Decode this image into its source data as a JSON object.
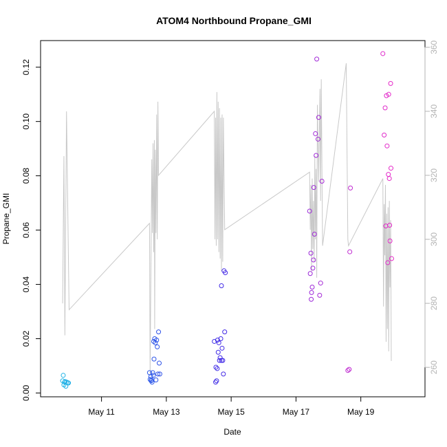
{
  "chart_data": {
    "type": "scatter",
    "title": "ATOM4 Northbound Propane_GMI",
    "xlabel": "Date",
    "ylabel": "Propane_GMI",
    "x_ticks": [
      {
        "label": "May 11",
        "value": 11
      },
      {
        "label": "May 13",
        "value": 13
      },
      {
        "label": "May 15",
        "value": 15
      },
      {
        "label": "May 17",
        "value": 17
      },
      {
        "label": "May 19",
        "value": 19
      }
    ],
    "xlim": [
      9.12,
      20.98
    ],
    "ylim": [
      -0.0014,
      0.1298
    ],
    "y_ticks": [
      "0.00",
      "0.02",
      "0.04",
      "0.06",
      "0.08",
      "0.10",
      "0.12"
    ],
    "y_right_ticks": [
      "260",
      "280",
      "300",
      "320",
      "340",
      "360"
    ],
    "y_right_lim": [
      250.8,
      362.1
    ],
    "grid": false,
    "colors": {
      "line": "#c8c8c8",
      "right_axis": "#b3b3b3",
      "point_gradient": [
        "#1eb4e6",
        "#2a5be8",
        "#4326e6",
        "#9a28d8",
        "#e628c8"
      ]
    },
    "series": [
      {
        "kind": "points",
        "points": [
          [
            9.8,
            0.0045
          ],
          [
            9.82,
            0.0065
          ],
          [
            9.84,
            0.003
          ],
          [
            9.86,
            0.004
          ],
          [
            9.88,
            0.0042
          ],
          [
            9.9,
            0.0025
          ],
          [
            9.92,
            0.004
          ],
          [
            9.96,
            0.0038
          ],
          [
            9.98,
            0.0037
          ],
          [
            12.48,
            0.0075
          ],
          [
            12.5,
            0.005
          ],
          [
            12.52,
            0.006
          ],
          [
            12.53,
            0.0045
          ],
          [
            12.55,
            0.0048
          ],
          [
            12.56,
            0.004
          ],
          [
            12.58,
            0.0075
          ],
          [
            12.6,
            0.0065
          ],
          [
            12.61,
            0.019
          ],
          [
            12.62,
            0.0125
          ],
          [
            12.64,
            0.02
          ],
          [
            12.66,
            0.0185
          ],
          [
            12.68,
            0.0048
          ],
          [
            12.7,
            0.0195
          ],
          [
            12.72,
            0.017
          ],
          [
            12.74,
            0.007
          ],
          [
            12.76,
            0.0225
          ],
          [
            12.78,
            0.011
          ],
          [
            12.8,
            0.007
          ],
          [
            14.48,
            0.019
          ],
          [
            14.52,
            0.004
          ],
          [
            14.53,
            0.0095
          ],
          [
            14.55,
            0.0045
          ],
          [
            14.57,
            0.009
          ],
          [
            14.58,
            0.0195
          ],
          [
            14.6,
            0.015
          ],
          [
            14.62,
            0.0185
          ],
          [
            14.64,
            0.012
          ],
          [
            14.66,
            0.013
          ],
          [
            14.68,
            0.02
          ],
          [
            14.7,
            0.012
          ],
          [
            14.7,
            0.0395
          ],
          [
            14.72,
            0.0165
          ],
          [
            14.74,
            0.012
          ],
          [
            14.76,
            0.007
          ],
          [
            14.78,
            0.045
          ],
          [
            14.8,
            0.0225
          ],
          [
            14.82,
            0.0443
          ],
          [
            17.42,
            0.067
          ],
          [
            17.44,
            0.044
          ],
          [
            17.46,
            0.0515
          ],
          [
            17.47,
            0.0345
          ],
          [
            17.48,
            0.037
          ],
          [
            17.5,
            0.039
          ],
          [
            17.52,
            0.046
          ],
          [
            17.54,
            0.049
          ],
          [
            17.55,
            0.0757
          ],
          [
            17.57,
            0.0585
          ],
          [
            17.6,
            0.0955
          ],
          [
            17.62,
            0.0875
          ],
          [
            17.64,
            0.123
          ],
          [
            17.68,
            0.0935
          ],
          [
            17.7,
            0.1015
          ],
          [
            17.73,
            0.036
          ],
          [
            17.76,
            0.0405
          ],
          [
            17.8,
            0.078
          ],
          [
            18.6,
            0.0083
          ],
          [
            18.64,
            0.0087
          ],
          [
            18.66,
            0.052
          ],
          [
            18.68,
            0.0755
          ],
          [
            19.68,
            0.125
          ],
          [
            19.72,
            0.095
          ],
          [
            19.75,
            0.105
          ],
          [
            19.77,
            0.0615
          ],
          [
            19.79,
            0.1095
          ],
          [
            19.81,
            0.091
          ],
          [
            19.83,
            0.048
          ],
          [
            19.85,
            0.0805
          ],
          [
            19.86,
            0.11
          ],
          [
            19.88,
            0.079
          ],
          [
            19.89,
            0.0618
          ],
          [
            19.9,
            0.056
          ],
          [
            19.92,
            0.114
          ],
          [
            19.93,
            0.0828
          ],
          [
            19.95,
            0.0495
          ]
        ]
      },
      {
        "kind": "line",
        "axis": "right",
        "points": [
          [
            9.8,
            280
          ],
          [
            9.84,
            326
          ],
          [
            9.87,
            270
          ],
          [
            9.92,
            340
          ],
          [
            10.0,
            278
          ],
          [
            12.48,
            305
          ],
          [
            12.5,
            258
          ],
          [
            12.52,
            285
          ],
          [
            12.55,
            325
          ],
          [
            12.57,
            302
          ],
          [
            12.59,
            330
          ],
          [
            12.61,
            296
          ],
          [
            12.63,
            331
          ],
          [
            12.64,
            272
          ],
          [
            12.66,
            328
          ],
          [
            12.68,
            302
          ],
          [
            12.7,
            339
          ],
          [
            12.72,
            300
          ],
          [
            12.74,
            343
          ],
          [
            12.76,
            320
          ],
          [
            14.48,
            340
          ],
          [
            14.5,
            300
          ],
          [
            14.52,
            338
          ],
          [
            14.54,
            298
          ],
          [
            14.56,
            346
          ],
          [
            14.58,
            300
          ],
          [
            14.6,
            343
          ],
          [
            14.62,
            296
          ],
          [
            14.64,
            341
          ],
          [
            14.66,
            294
          ],
          [
            14.68,
            338
          ],
          [
            14.7,
            290
          ],
          [
            14.72,
            339
          ],
          [
            14.74,
            293
          ],
          [
            14.76,
            338
          ],
          [
            14.8,
            303
          ],
          [
            17.42,
            321
          ],
          [
            17.44,
            303
          ],
          [
            17.46,
            317
          ],
          [
            17.48,
            290
          ],
          [
            17.5,
            319
          ],
          [
            17.52,
            297
          ],
          [
            17.54,
            312
          ],
          [
            17.56,
            293
          ],
          [
            17.58,
            326
          ],
          [
            17.6,
            300
          ],
          [
            17.62,
            322
          ],
          [
            17.64,
            288
          ],
          [
            17.66,
            342
          ],
          [
            17.7,
            318
          ],
          [
            17.74,
            347
          ],
          [
            17.76,
            312
          ],
          [
            17.78,
            350
          ],
          [
            17.82,
            298
          ],
          [
            18.55,
            355
          ],
          [
            18.6,
            300
          ],
          [
            18.62,
            298
          ],
          [
            19.68,
            319
          ],
          [
            19.7,
            279
          ],
          [
            19.72,
            311
          ],
          [
            19.74,
            295
          ],
          [
            19.76,
            317
          ],
          [
            19.78,
            268
          ],
          [
            19.8,
            308
          ],
          [
            19.82,
            272
          ],
          [
            19.84,
            310
          ],
          [
            19.86,
            265
          ],
          [
            19.88,
            312
          ],
          [
            19.9,
            285
          ],
          [
            19.92,
            306
          ],
          [
            19.94,
            262
          ]
        ]
      }
    ]
  }
}
